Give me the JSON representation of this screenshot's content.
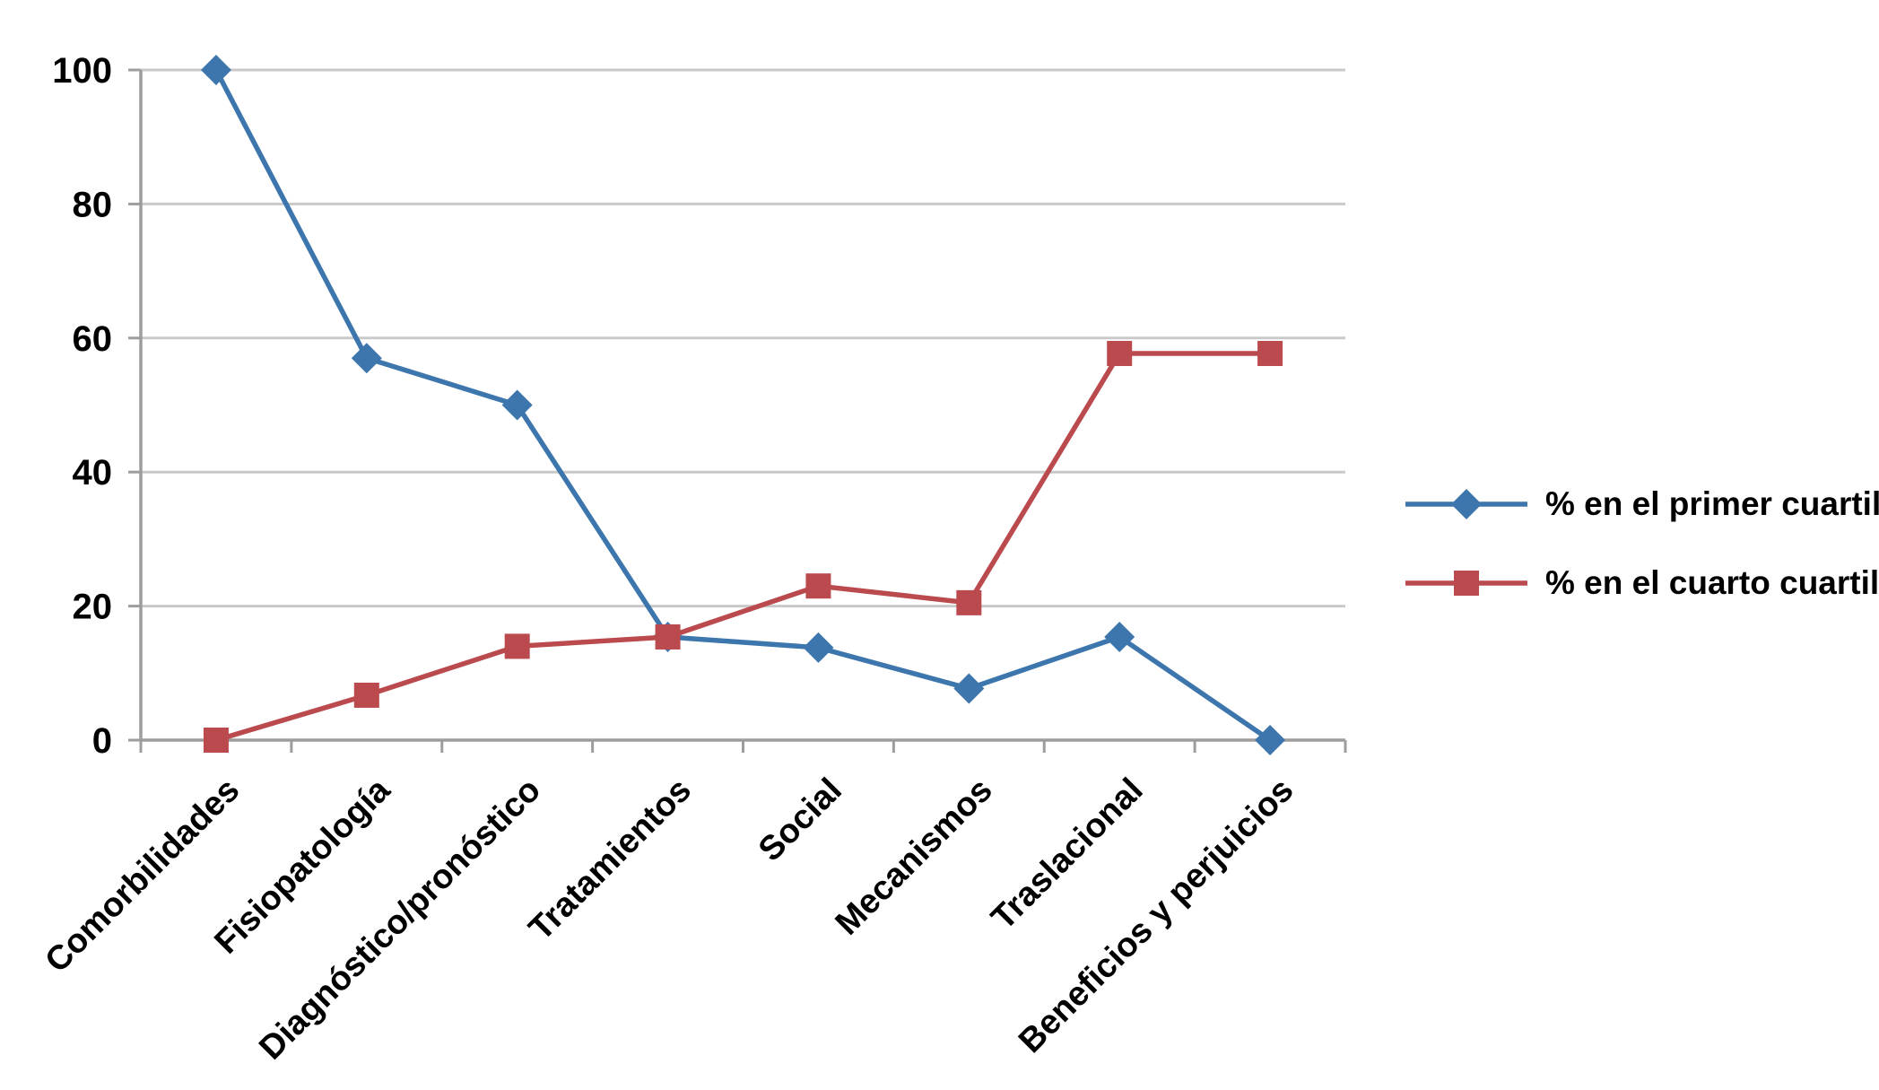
{
  "chart_data": {
    "type": "line",
    "title": "",
    "categories": [
      "Comorbilidades",
      "Fisiopatología",
      "Diagnóstico/pronóstico",
      "Tratamientos",
      "Social",
      "Mecanismos",
      "Traslacional",
      "Beneficios y perjuicios"
    ],
    "series": [
      {
        "name": "% en el primer cuartil",
        "marker": "diamond",
        "color": "#3C76AC",
        "values": [
          100,
          57,
          50,
          15.4,
          13.8,
          7.7,
          15.4,
          0
        ]
      },
      {
        "name": "% en el cuarto cuartil",
        "marker": "square",
        "color": "#BB4A4E",
        "values": [
          0,
          6.7,
          14,
          15.4,
          23,
          20.5,
          57.7,
          57.7
        ]
      }
    ],
    "ylim": [
      0,
      100
    ],
    "ytick_step": 20,
    "y_tick_labels": [
      "0",
      "20",
      "40",
      "60",
      "80",
      "100"
    ],
    "xlabel": "",
    "ylabel": "",
    "grid": true,
    "legend_position": "right",
    "colors": {
      "gridline": "#C9C9C9",
      "axis": "#9D9D9D",
      "text": "#000000",
      "background": "#FFFFFF"
    }
  }
}
